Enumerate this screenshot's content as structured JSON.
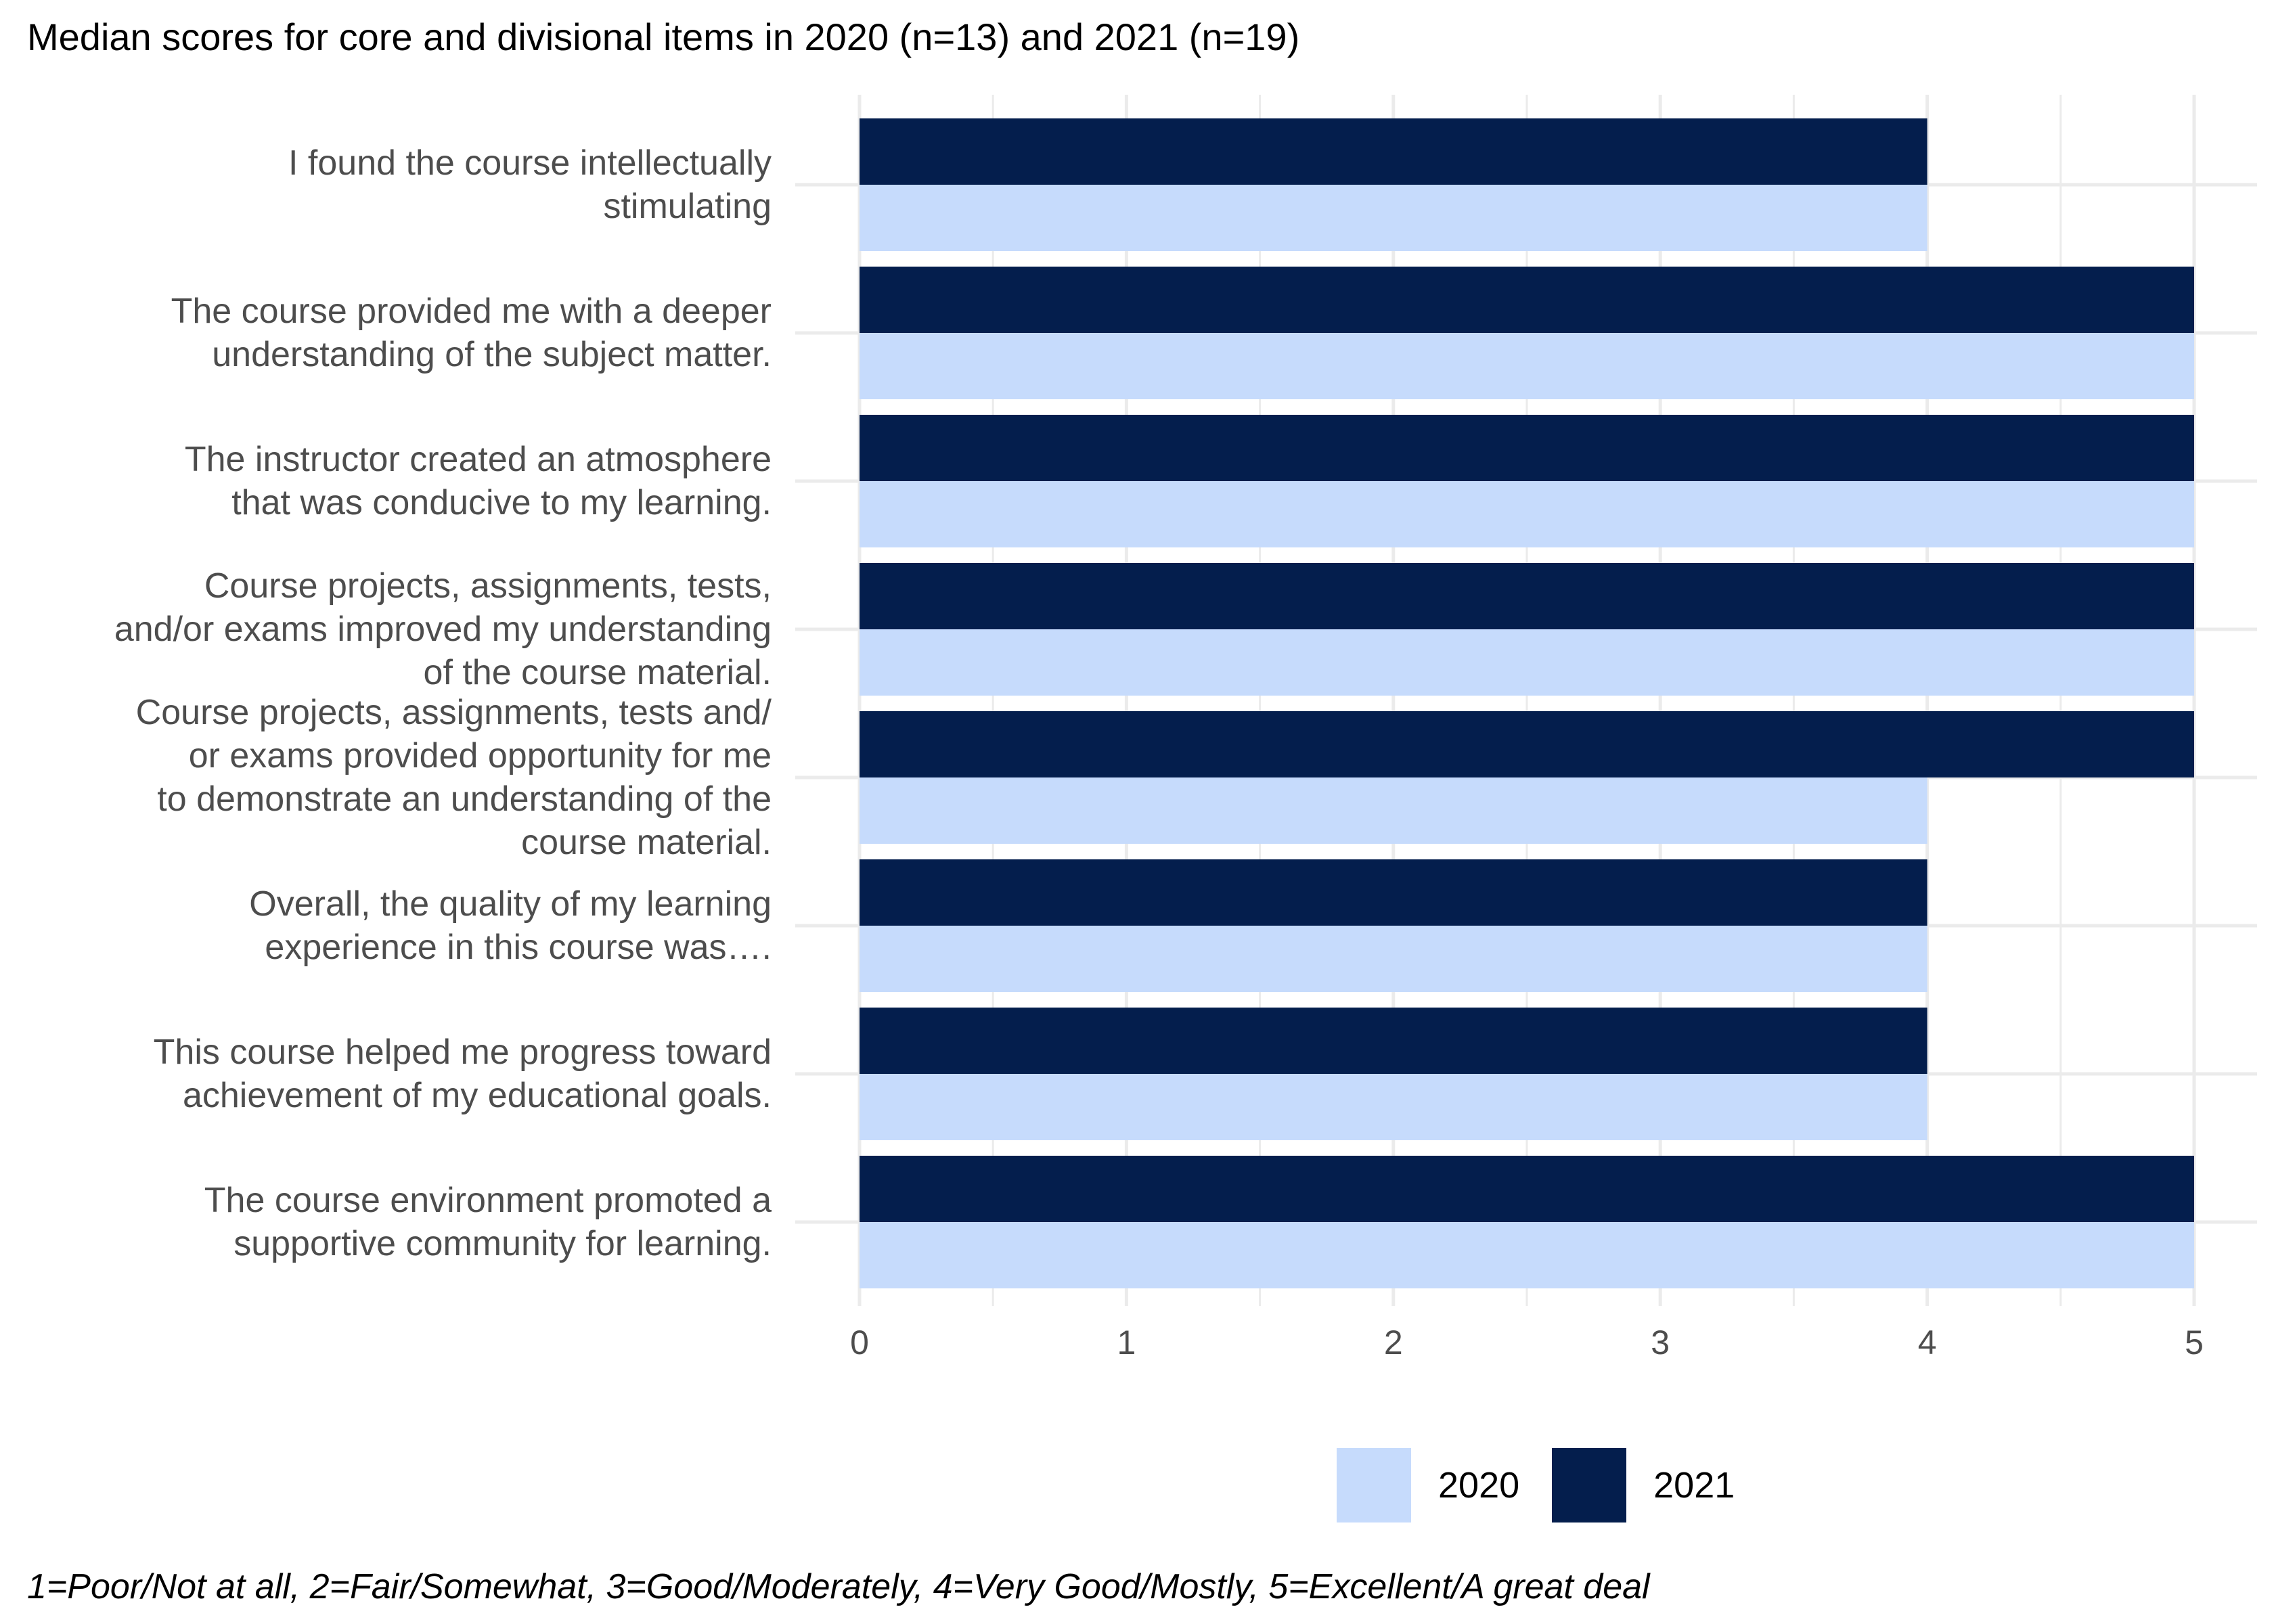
{
  "chart_data": {
    "type": "bar",
    "orientation": "horizontal",
    "title": "Median scores for core and divisional items in 2020 (n=13) and 2021 (n=19)",
    "categories": [
      "I found the course intellectually stimulating",
      "The course provided me with a deeper understanding of the subject matter.",
      "The instructor created an atmosphere that was conducive to my learning.",
      "Course projects, assignments, tests, and/or exams improved my understanding of the course material.",
      "Course projects, assignments, tests and/ or exams provided opportunity for me to demonstrate an understanding of the course material.",
      "Overall, the quality of my learning experience in this course was….",
      "This course helped me progress toward achievement of my educational goals.",
      "The course environment promoted a supportive community for learning."
    ],
    "category_lines": [
      [
        "I found the course intellectually",
        "stimulating"
      ],
      [
        "The course provided me with a deeper",
        "understanding of the subject matter."
      ],
      [
        "The instructor created an atmosphere",
        "that was conducive to my learning."
      ],
      [
        "Course projects, assignments, tests,",
        "and/or exams improved my understanding",
        "of the course material."
      ],
      [
        "Course projects, assignments, tests and/",
        "or exams provided opportunity for me",
        "to demonstrate an understanding of the",
        "course material."
      ],
      [
        "Overall, the quality of my learning",
        "experience in this course was…."
      ],
      [
        "This course helped me progress toward",
        "achievement of my educational goals."
      ],
      [
        "The course environment promoted a",
        "supportive community for learning."
      ]
    ],
    "series": [
      {
        "name": "2020",
        "color": "#c6dbfc",
        "values": [
          4,
          5,
          5,
          5,
          4,
          4,
          4,
          5
        ]
      },
      {
        "name": "2021",
        "color": "#041e4d",
        "values": [
          4,
          5,
          5,
          5,
          5,
          4,
          4,
          5
        ]
      }
    ],
    "xlim": [
      0,
      5
    ],
    "xticks": [
      "0",
      "1",
      "2",
      "3",
      "4",
      "5"
    ],
    "grid": true,
    "legend": "bottom",
    "caption": "1=Poor/Not at all, 2=Fair/Somewhat, 3=Good/Moderately, 4=Very Good/Mostly, 5=Excellent/A great deal"
  }
}
